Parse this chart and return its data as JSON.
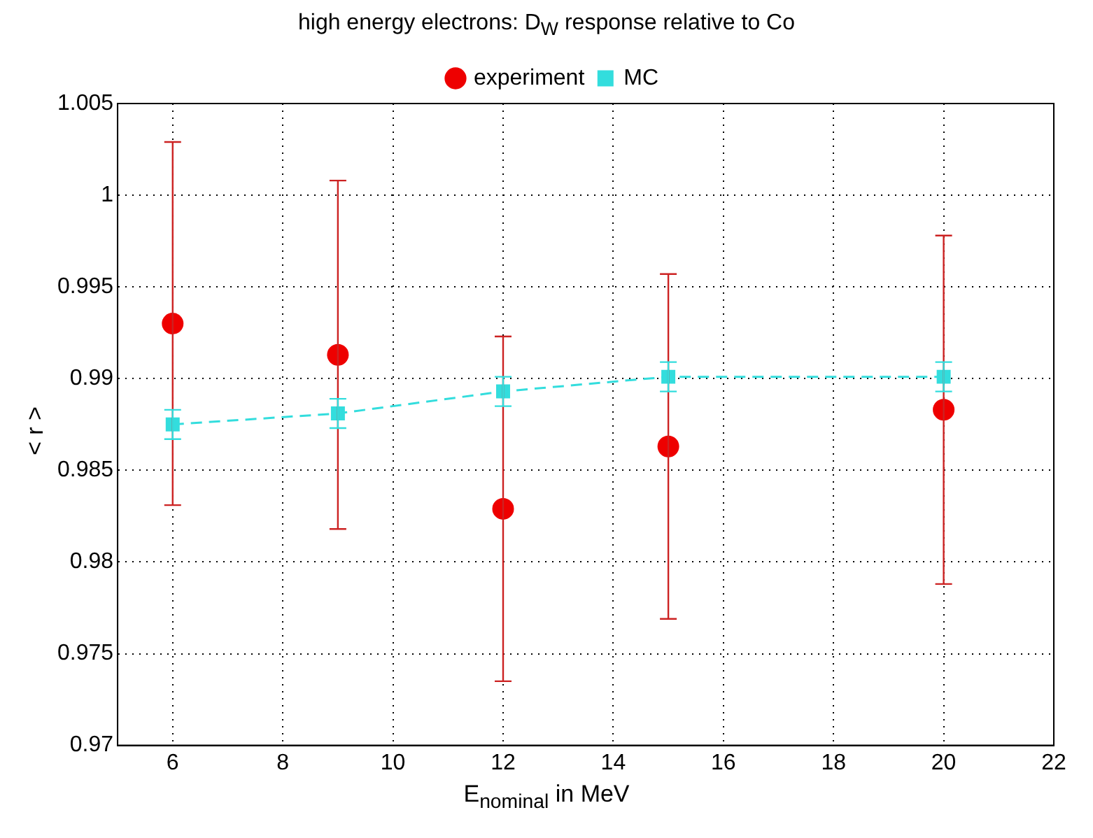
{
  "chart_data": {
    "type": "scatter",
    "title": "high energy electrons:  D$_{W}$ response relative to Co",
    "xlabel": "E$_{nominal}$ in MeV",
    "ylabel": "< r >",
    "x": [
      6,
      9,
      12,
      15,
      20
    ],
    "series": [
      {
        "name": "experiment",
        "color": "#ee0000",
        "values": [
          0.993,
          0.9913,
          0.9829,
          0.9863,
          0.9883
        ],
        "errors": [
          0.0099,
          0.0095,
          0.0094,
          0.0094,
          0.0095
        ],
        "marker": "circle"
      },
      {
        "name": "MC",
        "type": "line",
        "color": "#33dddd",
        "values": [
          0.9875,
          0.9881,
          0.9893,
          0.9901,
          0.9901
        ],
        "errors": [
          0.0008,
          0.0008,
          0.0008,
          0.0008,
          0.0008
        ],
        "marker": "square",
        "line_style": "dashed"
      }
    ],
    "xlim": [
      5,
      22
    ],
    "xticks": [
      6,
      8,
      10,
      12,
      14,
      16,
      18,
      20,
      22
    ],
    "ylim": [
      0.97,
      1.005
    ],
    "yticks": [
      0.97,
      0.975,
      0.98,
      0.985,
      0.99,
      0.995,
      1,
      1.005
    ],
    "grid": true,
    "legend": "top"
  }
}
